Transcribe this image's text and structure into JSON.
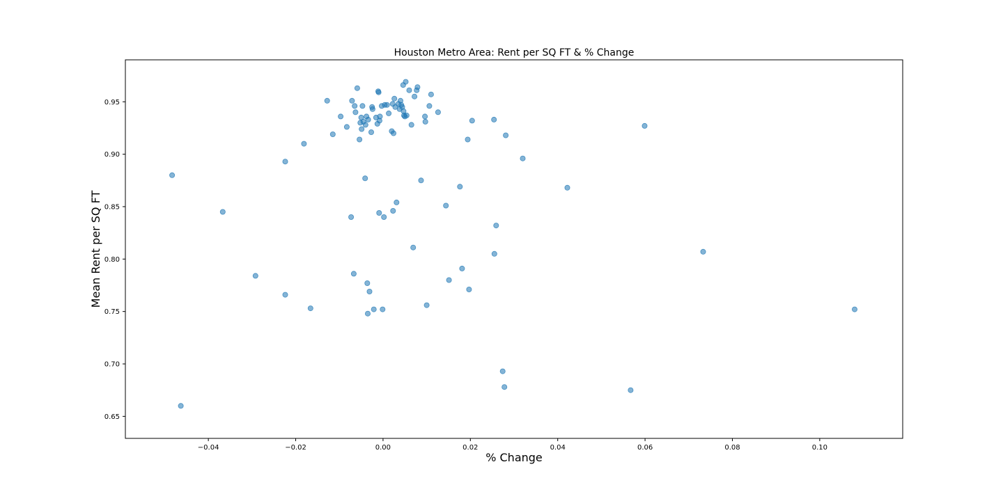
{
  "chart_data": {
    "type": "scatter",
    "title": "Houston Metro Area: Rent per SQ FT & % Change",
    "xlabel": "% Change",
    "ylabel": "Mean Rent per SQ FT",
    "xlim": [
      -0.059,
      0.119
    ],
    "ylim": [
      0.629,
      0.99
    ],
    "xticks": [
      -0.04,
      -0.02,
      0.0,
      0.02,
      0.04,
      0.06,
      0.08,
      0.1
    ],
    "xtick_labels": [
      "−0.04",
      "−0.02",
      "0.00",
      "0.02",
      "0.04",
      "0.06",
      "0.08",
      "0.10"
    ],
    "yticks": [
      0.65,
      0.7,
      0.75,
      0.8,
      0.85,
      0.9,
      0.95
    ],
    "ytick_labels": [
      "0.65",
      "0.70",
      "0.75",
      "0.80",
      "0.85",
      "0.90",
      "0.95"
    ],
    "grid": false,
    "point_color": "#1f77b4",
    "point_alpha": 0.55,
    "points": [
      [
        -0.0483,
        0.88
      ],
      [
        -0.0463,
        0.66
      ],
      [
        -0.0367,
        0.845
      ],
      [
        -0.0292,
        0.784
      ],
      [
        -0.0224,
        0.893
      ],
      [
        -0.0224,
        0.766
      ],
      [
        -0.0181,
        0.91
      ],
      [
        -0.0166,
        0.753
      ],
      [
        -0.0128,
        0.951
      ],
      [
        -0.0115,
        0.919
      ],
      [
        -0.0097,
        0.936
      ],
      [
        -0.0083,
        0.926
      ],
      [
        -0.0073,
        0.84
      ],
      [
        -0.0071,
        0.951
      ],
      [
        -0.0067,
        0.786
      ],
      [
        -0.0065,
        0.946
      ],
      [
        -0.0063,
        0.94
      ],
      [
        -0.0059,
        0.963
      ],
      [
        -0.0054,
        0.914
      ],
      [
        -0.0052,
        0.93
      ],
      [
        -0.005,
        0.935
      ],
      [
        -0.0049,
        0.924
      ],
      [
        -0.0047,
        0.946
      ],
      [
        -0.0045,
        0.931
      ],
      [
        -0.0041,
        0.877
      ],
      [
        -0.004,
        0.928
      ],
      [
        -0.0038,
        0.936
      ],
      [
        -0.0036,
        0.777
      ],
      [
        -0.0035,
        0.748
      ],
      [
        -0.0034,
        0.933
      ],
      [
        -0.0031,
        0.769
      ],
      [
        -0.0027,
        0.921
      ],
      [
        -0.0025,
        0.945
      ],
      [
        -0.0024,
        0.943
      ],
      [
        -0.0021,
        0.752
      ],
      [
        -0.0016,
        0.935
      ],
      [
        -0.0013,
        0.929
      ],
      [
        -0.0011,
        0.96
      ],
      [
        -0.001,
        0.959
      ],
      [
        -0.0009,
        0.844
      ],
      [
        -0.0008,
        0.932
      ],
      [
        -0.0007,
        0.936
      ],
      [
        -0.0003,
        0.946
      ],
      [
        -0.0001,
        0.752
      ],
      [
        0.0002,
        0.84
      ],
      [
        0.0004,
        0.947
      ],
      [
        0.0009,
        0.947
      ],
      [
        0.0013,
        0.939
      ],
      [
        0.002,
        0.922
      ],
      [
        0.0022,
        0.948
      ],
      [
        0.0023,
        0.846
      ],
      [
        0.0024,
        0.92
      ],
      [
        0.0026,
        0.953
      ],
      [
        0.0028,
        0.945
      ],
      [
        0.0031,
        0.854
      ],
      [
        0.0035,
        0.948
      ],
      [
        0.0038,
        0.943
      ],
      [
        0.004,
        0.951
      ],
      [
        0.0042,
        0.947
      ],
      [
        0.0044,
        0.945
      ],
      [
        0.0046,
        0.966
      ],
      [
        0.0047,
        0.941
      ],
      [
        0.0048,
        0.937
      ],
      [
        0.005,
        0.936
      ],
      [
        0.0052,
        0.969
      ],
      [
        0.0054,
        0.937
      ],
      [
        0.006,
        0.961
      ],
      [
        0.0065,
        0.928
      ],
      [
        0.0069,
        0.811
      ],
      [
        0.0072,
        0.955
      ],
      [
        0.0077,
        0.961
      ],
      [
        0.0079,
        0.964
      ],
      [
        0.0087,
        0.875
      ],
      [
        0.0096,
        0.936
      ],
      [
        0.0097,
        0.931
      ],
      [
        0.01,
        0.756
      ],
      [
        0.0106,
        0.946
      ],
      [
        0.011,
        0.957
      ],
      [
        0.0126,
        0.94
      ],
      [
        0.0144,
        0.851
      ],
      [
        0.0151,
        0.78
      ],
      [
        0.0176,
        0.869
      ],
      [
        0.0181,
        0.791
      ],
      [
        0.0194,
        0.914
      ],
      [
        0.0197,
        0.771
      ],
      [
        0.0204,
        0.932
      ],
      [
        0.0254,
        0.933
      ],
      [
        0.0255,
        0.805
      ],
      [
        0.0259,
        0.832
      ],
      [
        0.0274,
        0.693
      ],
      [
        0.0278,
        0.678
      ],
      [
        0.0281,
        0.918
      ],
      [
        0.032,
        0.896
      ],
      [
        0.0422,
        0.868
      ],
      [
        0.0567,
        0.675
      ],
      [
        0.0599,
        0.927
      ],
      [
        0.0733,
        0.807
      ],
      [
        0.108,
        0.752
      ]
    ]
  }
}
